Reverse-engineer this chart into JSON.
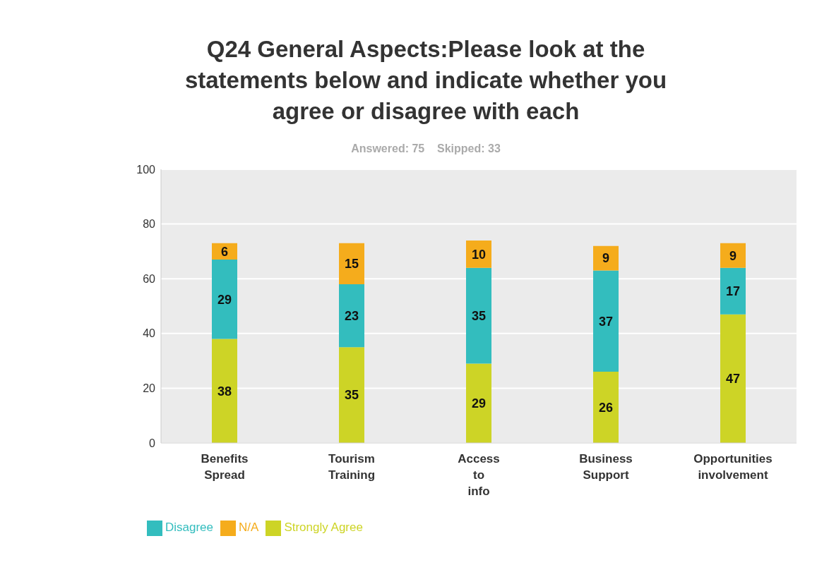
{
  "chart_data": {
    "type": "bar",
    "title": "Q24 General Aspects:Please look at the statements below and indicate whether you agree or disagree with each",
    "subtitle": "Answered: 75    Skipped: 33",
    "categories": [
      "Benefits Spread",
      "Tourism Training",
      "Access to info",
      "Business Support",
      "Opportunities involvement"
    ],
    "stacked": true,
    "data_labels": true,
    "grid": "y",
    "legend": "bottom left",
    "ylim": [
      0,
      100
    ],
    "yticks": [
      0,
      20,
      40,
      60,
      80,
      100
    ],
    "series": [
      {
        "name": "Strongly Agree",
        "color": "#cdd426",
        "values": [
          38,
          35,
          29,
          26,
          47
        ]
      },
      {
        "name": "Disagree",
        "color": "#33bdbe",
        "values": [
          29,
          23,
          35,
          37,
          17
        ]
      },
      {
        "name": "N/A",
        "color": "#f5ac1c",
        "values": [
          6,
          15,
          10,
          9,
          9
        ]
      }
    ]
  }
}
